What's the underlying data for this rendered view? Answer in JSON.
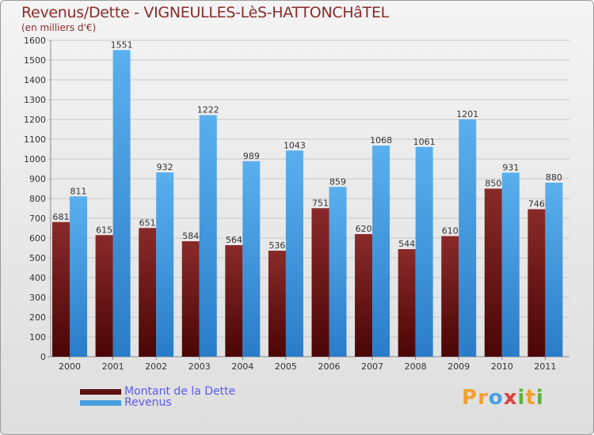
{
  "title": "Revenus/Dette - VIGNEULLES-LèS-HATTONCHâTEL",
  "subtitle": "(en milliers d'€)",
  "colors": {
    "dette": "#7a1c1c",
    "revenus": "#4a9fe0"
  },
  "chart_data": {
    "type": "bar",
    "categories": [
      "2000",
      "2001",
      "2002",
      "2003",
      "2004",
      "2005",
      "2006",
      "2007",
      "2008",
      "2009",
      "2010",
      "2011"
    ],
    "series": [
      {
        "name": "Montant de la Dette",
        "values": [
          681,
          615,
          651,
          584,
          564,
          536,
          751,
          620,
          544,
          610,
          850,
          746
        ]
      },
      {
        "name": "Revenus",
        "values": [
          811,
          1551,
          932,
          1222,
          989,
          1043,
          859,
          1068,
          1061,
          1201,
          931,
          880
        ]
      }
    ],
    "ylim": [
      0,
      1600
    ],
    "yticks": [
      0,
      100,
      200,
      300,
      400,
      500,
      600,
      700,
      800,
      900,
      1000,
      1100,
      1200,
      1300,
      1400,
      1500,
      1600
    ],
    "grid": true,
    "legend_position": "bottom-left"
  },
  "legend": [
    {
      "label": "Montant de la Dette"
    },
    {
      "label": "Revenus"
    }
  ],
  "logo": {
    "letters": [
      "P",
      "r",
      "o",
      "x",
      "i",
      "t",
      "i"
    ],
    "colors": [
      "#f0a030",
      "#f0a030",
      "#4aa0e0",
      "#e04040",
      "#60b040",
      "#f0a030",
      "#60b040"
    ]
  }
}
